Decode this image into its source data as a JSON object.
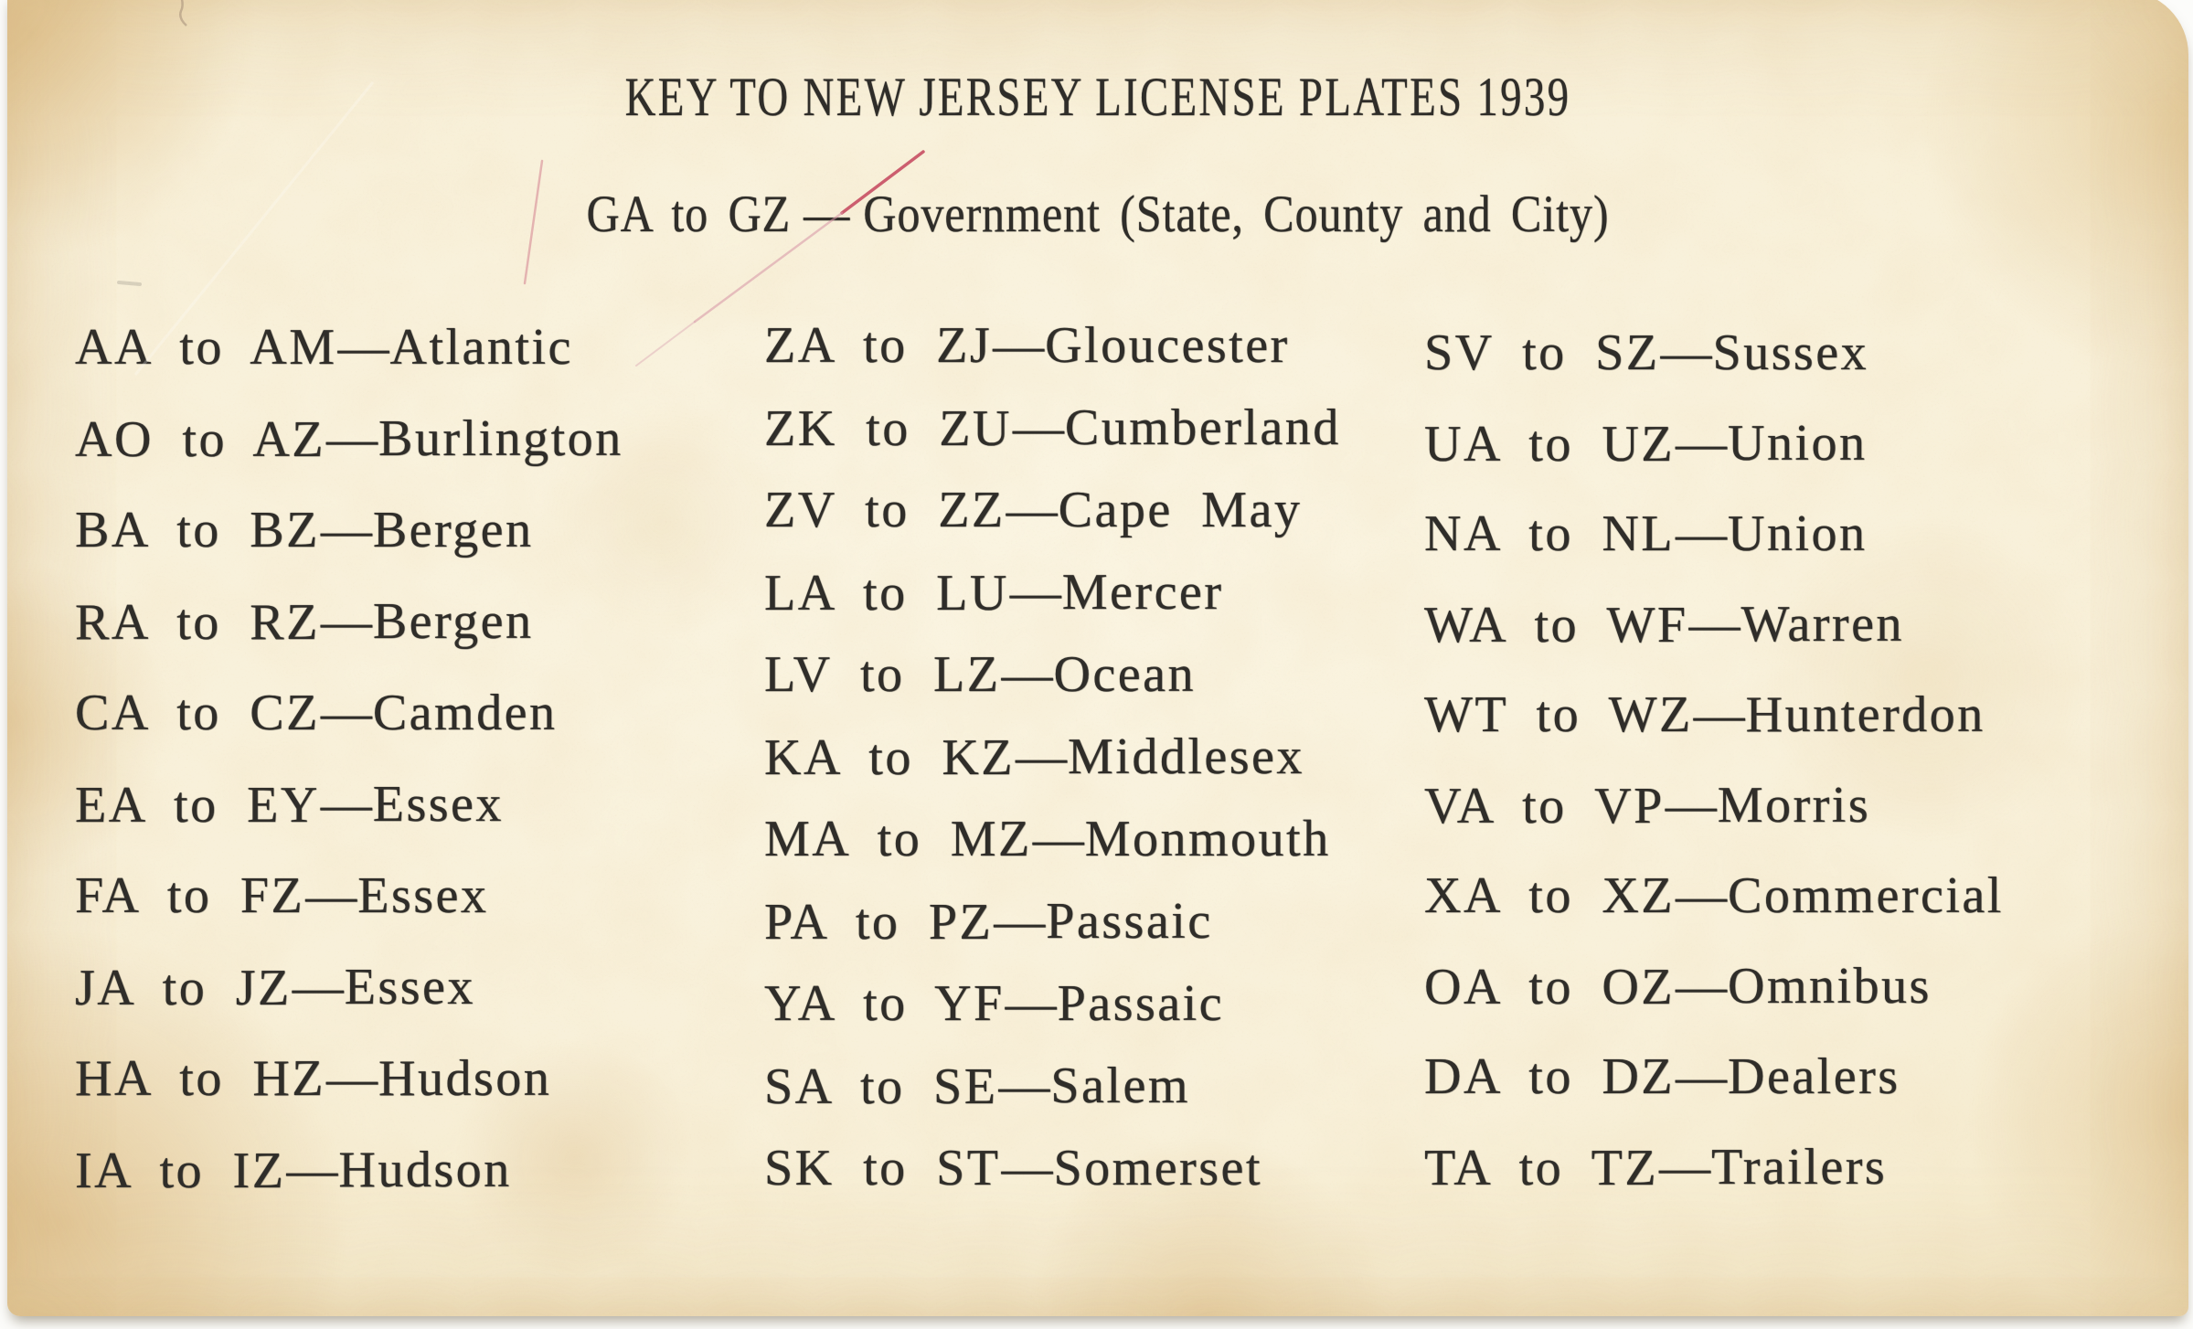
{
  "card": {
    "title": "KEY TO NEW JERSEY LICENSE PLATES 1939",
    "subtitle": {
      "range": "GA to GZ",
      "dash": "—",
      "description": "Government (State, County and City)"
    },
    "separator": "—",
    "columns": [
      {
        "rows": [
          {
            "range": "AA to AM",
            "county": "Atlantic"
          },
          {
            "range": "AO to AZ",
            "county": "Burlington"
          },
          {
            "range": "BA to BZ",
            "county": "Bergen"
          },
          {
            "range": "RA to RZ",
            "county": "Bergen"
          },
          {
            "range": "CA to CZ",
            "county": "Camden"
          },
          {
            "range": "EA to EY",
            "county": "Essex"
          },
          {
            "range": "FA to FZ",
            "county": "Essex"
          },
          {
            "range": "JA to JZ",
            "county": "Essex"
          },
          {
            "range": "HA to HZ",
            "county": "Hudson"
          },
          {
            "range": "IA to IZ",
            "county": "Hudson"
          }
        ]
      },
      {
        "rows": [
          {
            "range": "ZA to ZJ",
            "county": "Gloucester"
          },
          {
            "range": "ZK to ZU",
            "county": "Cumberland"
          },
          {
            "range": "ZV to ZZ",
            "county": "Cape May"
          },
          {
            "range": "LA to LU",
            "county": "Mercer"
          },
          {
            "range": "LV to LZ",
            "county": "Ocean"
          },
          {
            "range": "KA to KZ",
            "county": "Middlesex"
          },
          {
            "range": "MA to MZ",
            "county": "Monmouth"
          },
          {
            "range": "PA to PZ",
            "county": "Passaic"
          },
          {
            "range": "YA to YF",
            "county": "Passaic"
          },
          {
            "range": "SA to SE",
            "county": "Salem"
          },
          {
            "range": "SK to ST",
            "county": "Somerset"
          }
        ]
      },
      {
        "rows": [
          {
            "range": "SV to SZ",
            "county": "Sussex"
          },
          {
            "range": "UA to UZ",
            "county": "Union"
          },
          {
            "range": "NA to NL",
            "county": "Union"
          },
          {
            "range": "WA to WF",
            "county": "Warren"
          },
          {
            "range": "WT to WZ",
            "county": "Hunterdon"
          },
          {
            "range": "VA to VP",
            "county": "Morris"
          },
          {
            "range": "XA to XZ",
            "county": "Commercial"
          },
          {
            "range": "OA to OZ",
            "county": "Omnibus"
          },
          {
            "range": "DA to DZ",
            "county": "Dealers"
          },
          {
            "range": "TA to TZ",
            "county": "Trailers"
          }
        ]
      }
    ]
  },
  "colors": {
    "background": "#fcfcfa",
    "ink": "#2f2d29",
    "paper_light": "#faf4e1",
    "paper_mid": "#f3e7c6",
    "paper_edge": "#e7d2a0",
    "red_mark": "#c23b55"
  }
}
